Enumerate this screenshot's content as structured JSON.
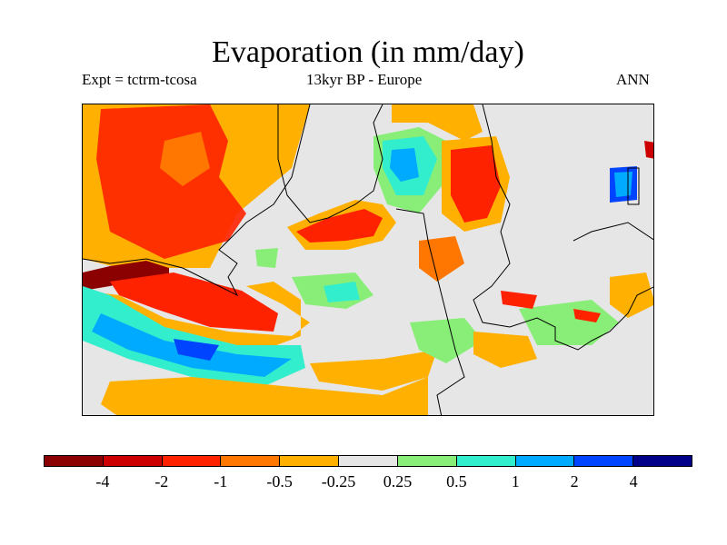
{
  "header": {
    "title": "Evaporation (in mm/day)",
    "experiment": "Expt = tctrm-tcosa",
    "period": "13kyr BP - Europe",
    "season": "ANN"
  },
  "colorbar": {
    "colors": [
      "#8b0000",
      "#cc0000",
      "#ff2200",
      "#ff7700",
      "#ffb000",
      "#e6e6e6",
      "#88ee77",
      "#33eecc",
      "#00aaff",
      "#0044ff",
      "#000088"
    ],
    "tick_labels": [
      "-4",
      "-2",
      "-1",
      "-0.5",
      "-0.25",
      "0.25",
      "0.5",
      "1",
      "2",
      "4"
    ]
  },
  "map": {
    "background_color": "#e6e6e6",
    "coastline_color": "#000000"
  }
}
